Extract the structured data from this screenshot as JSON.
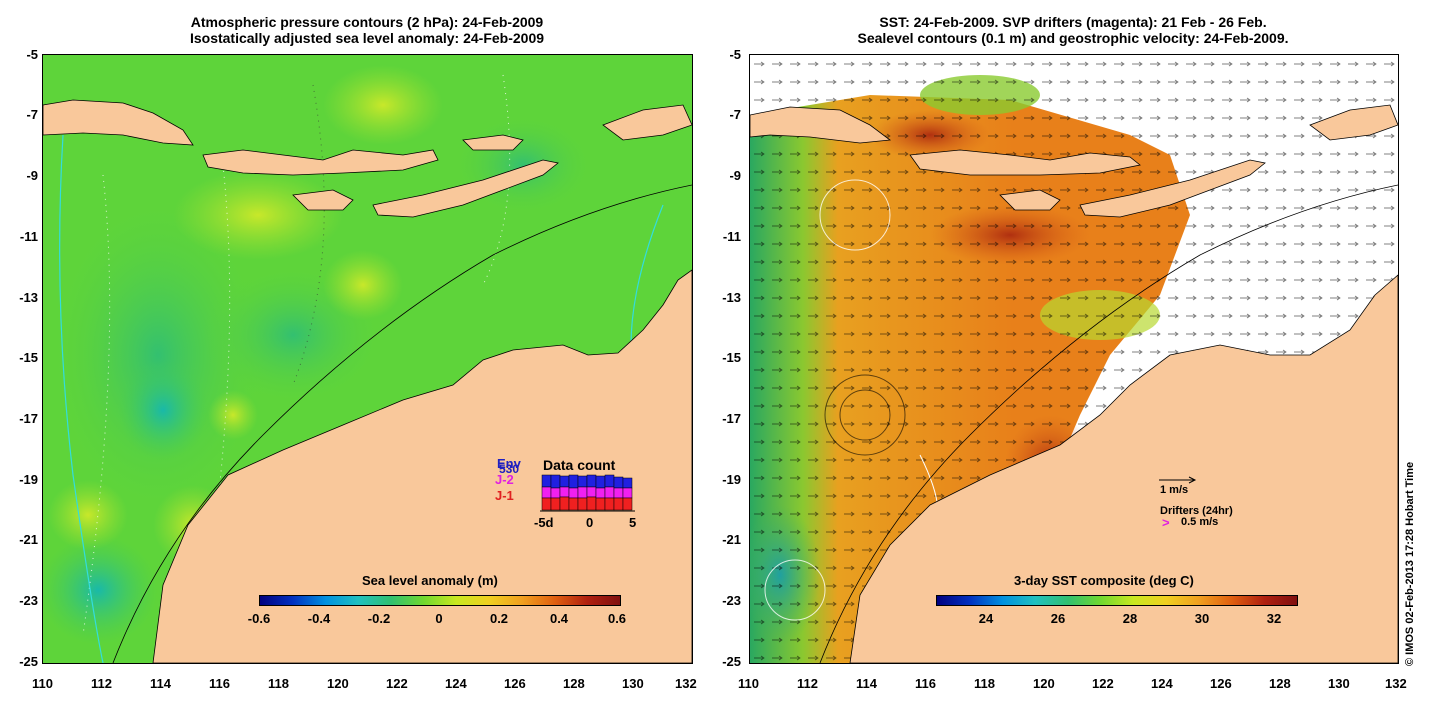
{
  "left_panel": {
    "title_line1": "Atmospheric pressure contours (2 hPa): 24-Feb-2009",
    "title_line2": "Isostatically adjusted sea level anomaly: 24-Feb-2009",
    "x_ticks": [
      "110",
      "112",
      "114",
      "116",
      "118",
      "120",
      "122",
      "124",
      "126",
      "128",
      "130",
      "132"
    ],
    "y_ticks": [
      "-5",
      "-7",
      "-9",
      "-11",
      "-13",
      "-15",
      "-17",
      "-19",
      "-21",
      "-23",
      "-25"
    ],
    "colorbar_title": "Sea level anomaly (m)",
    "colorbar_ticks": [
      "-0.6",
      "-0.4",
      "-0.2",
      "0",
      "0.2",
      "0.4",
      "0.6"
    ],
    "data_count": {
      "title": "Data count",
      "labels": [
        "Env",
        "J-2",
        "J-1"
      ],
      "label_colors": [
        "#2020c0",
        "#e020e0",
        "#e02020"
      ],
      "axis_ticks": [
        "-5d",
        "0",
        "5"
      ],
      "overlap_label": "530"
    }
  },
  "right_panel": {
    "title_line1": "SST: 24-Feb-2009. SVP drifters (magenta): 21 Feb - 26 Feb.",
    "title_line2": "Sealevel contours (0.1 m) and geostrophic velocity: 24-Feb-2009.",
    "x_ticks": [
      "110",
      "112",
      "114",
      "116",
      "118",
      "120",
      "122",
      "124",
      "126",
      "128",
      "130",
      "132"
    ],
    "y_ticks": [
      "-5",
      "-7",
      "-9",
      "-11",
      "-13",
      "-15",
      "-17",
      "-19",
      "-21",
      "-23",
      "-25"
    ],
    "colorbar_title": "3-day SST composite (deg C)",
    "colorbar_ticks": [
      "24",
      "26",
      "28",
      "30",
      "32"
    ],
    "velocity_scale_label": "1 m/s",
    "drifters_label": "Drifters (24hr)",
    "drifter_speed_label": "0.5 m/s",
    "drifter_marker": ">"
  },
  "credit": "© IMOS 02-Feb-2013 17:28 Hobart Time",
  "colors": {
    "land": "#f9c89b",
    "slа_main": "#66dd33",
    "sst_warm": "#e8761a",
    "sst_cool": "#2aa860"
  }
}
